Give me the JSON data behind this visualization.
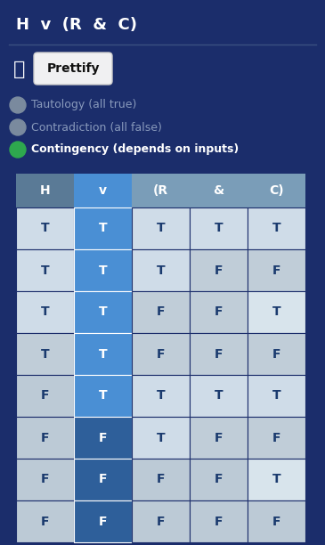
{
  "title": "H  v  (R  &  C)",
  "bg_color": "#1b2d6b",
  "header_labels": [
    "H",
    "v",
    "(R",
    "&",
    "C)"
  ],
  "table_data": [
    [
      "T",
      "T",
      "T",
      "T",
      "T"
    ],
    [
      "T",
      "T",
      "T",
      "F",
      "F"
    ],
    [
      "T",
      "T",
      "F",
      "F",
      "T"
    ],
    [
      "T",
      "T",
      "F",
      "F",
      "F"
    ],
    [
      "F",
      "T",
      "T",
      "T",
      "T"
    ],
    [
      "F",
      "F",
      "T",
      "F",
      "F"
    ],
    [
      "F",
      "F",
      "F",
      "F",
      "T"
    ],
    [
      "F",
      "F",
      "F",
      "F",
      "F"
    ]
  ],
  "header_colors": [
    "#5a7a96",
    "#4a8fd4",
    "#7a9db8",
    "#7a9db8",
    "#7a9db8"
  ],
  "v_true_color": "#4a8fd4",
  "v_false_color": "#2e5f9a",
  "cell_colors": [
    [
      "#cfdce8",
      "#cfdce8",
      "#cfdce8",
      "#cfdce8",
      "#cfdce8"
    ],
    [
      "#cfdce8",
      "#cfdce8",
      "#cfdce8",
      "#c0cdd8",
      "#c0cdd8"
    ],
    [
      "#cfdce8",
      "#cfdce8",
      "#c0cdd8",
      "#c0cdd8",
      "#d8e4ec"
    ],
    [
      "#c0cdd8",
      "#c0cdd8",
      "#c0cdd8",
      "#c0cdd8",
      "#c0cdd8"
    ],
    [
      "#bccad6",
      "#bccad6",
      "#cfdce8",
      "#cfdce8",
      "#cfdce8"
    ],
    [
      "#bccad6",
      "#bccad6",
      "#cfdce8",
      "#c0cdd8",
      "#c0cdd8"
    ],
    [
      "#bccad6",
      "#bccad6",
      "#bccad6",
      "#bccad6",
      "#d8e4ec"
    ],
    [
      "#bccad6",
      "#bccad6",
      "#bccad6",
      "#bccad6",
      "#bccad6"
    ]
  ],
  "text_color_T": "#1a3a6e",
  "text_color_F": "#1a3a6e",
  "text_color_v": "#ffffff",
  "indicator_colors": [
    "#7a8a9e",
    "#7a8a9e",
    "#2ea84e"
  ],
  "indicator_labels": [
    "Tautology (all true)",
    "Contradiction (all false)",
    "Contingency (depends on inputs)"
  ],
  "indicator_active": [
    false,
    false,
    true
  ],
  "button_label": "Prettify",
  "thumb_emoji": "👍"
}
